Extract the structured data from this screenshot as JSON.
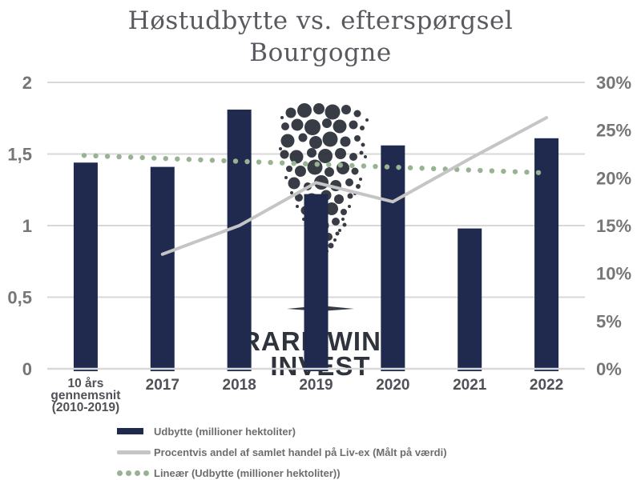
{
  "page": {
    "background": "#ffffff"
  },
  "chart_data": {
    "type": "combo (bar + line + dotted trendline)",
    "title": "Høstudbytte vs. efterspørgsel Bourgogne",
    "title_lines": [
      "Høstudbytte vs. efterspørgsel",
      "Bourgogne"
    ],
    "categories": [
      "10 års gennemsnit (2010-2019)",
      "2017",
      "2018",
      "2019",
      "2020",
      "2021",
      "2022"
    ],
    "category_label_lines": [
      [
        "10 års",
        "gennemsnit",
        "(2010-2019)"
      ],
      [
        "2017"
      ],
      [
        "2018"
      ],
      [
        "2019"
      ],
      [
        "2020"
      ],
      [
        "2021"
      ],
      [
        "2022"
      ]
    ],
    "left_axis": {
      "min": 0,
      "max": 2,
      "ticks": [
        2,
        1.5,
        1,
        0.5,
        0
      ],
      "tick_labels": [
        "2",
        "1,5",
        "1",
        "0,5",
        "0"
      ]
    },
    "right_axis": {
      "min": 0,
      "max": 30,
      "ticks": [
        30,
        25,
        20,
        15,
        10,
        5,
        0
      ],
      "tick_labels": [
        "30%",
        "25%",
        "20%",
        "15%",
        "10%",
        "5%",
        "0%"
      ]
    },
    "grid": true,
    "legend_position": "bottom-left",
    "series": [
      {
        "name": "Udbytte (millioner hektoliter)",
        "type": "bar",
        "axis": "left",
        "color": "#1f2a4e",
        "values": [
          1.44,
          1.41,
          1.81,
          1.22,
          1.56,
          0.98,
          1.61
        ]
      },
      {
        "name": "Procentvis andel af samlet handel på Liv-ex (Målt på værdi)",
        "type": "line",
        "axis": "right",
        "color": "#c5c5c5",
        "categories": [
          "2017",
          "2018",
          "2019",
          "2020",
          "2021",
          "2022"
        ],
        "values": [
          12,
          15,
          19.5,
          17.5,
          22,
          26.3
        ]
      },
      {
        "name": "Lineær (Udbytte (millioner hektoliter))",
        "type": "dotted-trendline",
        "axis": "left",
        "color": "#98b392",
        "start_value": 1.49,
        "end_value": 1.37
      }
    ]
  },
  "legend": {
    "items": [
      {
        "swatch": "bar",
        "color": "#1f2a4e",
        "label": "Udbytte (millioner hektoliter)"
      },
      {
        "swatch": "line",
        "color": "#c5c5c5",
        "label": "Procentvis andel af samlet handel på Liv-ex (Målt på værdi)"
      },
      {
        "swatch": "dotted",
        "color": "#98b392",
        "label": "Lineær (Udbytte (millioner hektoliter))"
      }
    ]
  },
  "watermark": {
    "icon": "dot-cluster-logo",
    "lines": [
      "RARE WINE",
      "INVEST"
    ]
  },
  "colors": {
    "bar": "#1f2a4e",
    "line": "#c5c5c5",
    "trend": "#98b392",
    "grid": "#d8d8d8",
    "title": "#585a5f",
    "y_labels": "#767676",
    "x_labels": "#4f5157",
    "watermark": "#20242e"
  }
}
